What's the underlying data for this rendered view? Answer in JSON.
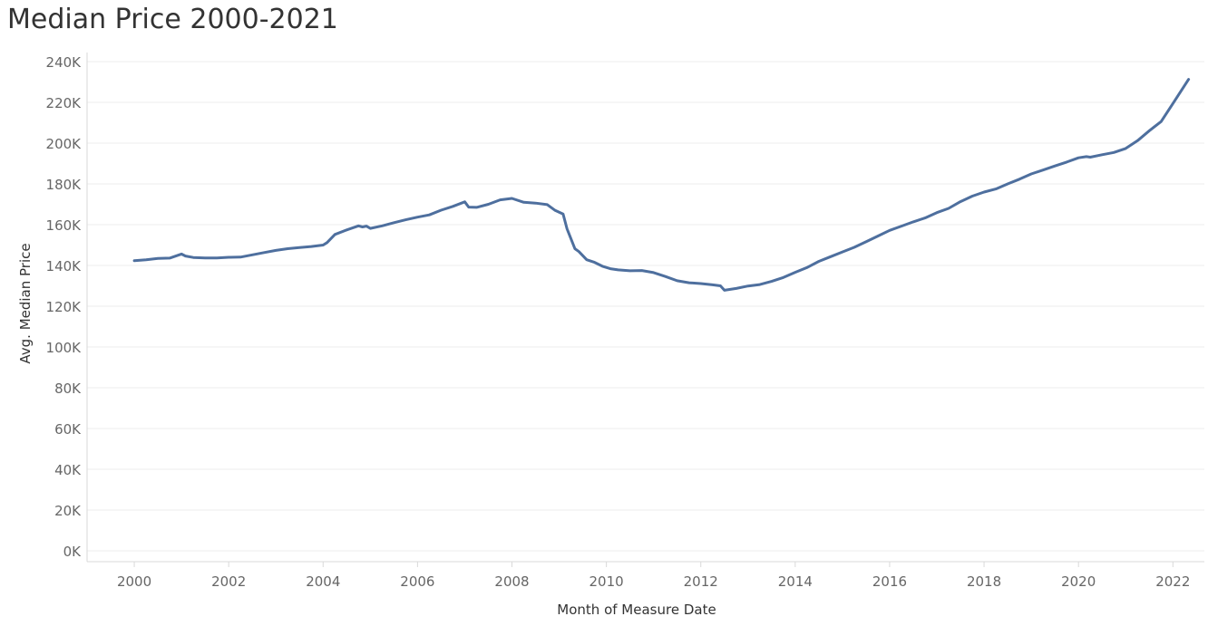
{
  "title": "Median Price 2000-2021",
  "colors": {
    "line": "#4e6f9e",
    "grid": "#eeeeee",
    "axis": "#d9d9d9",
    "tick_text": "#666666",
    "label_text": "#333333"
  },
  "chart_data": {
    "type": "line",
    "title": "Median Price 2000-2021",
    "xlabel": "Month of Measure Date",
    "ylabel": "Avg. Median Price",
    "xlim": [
      "1999-01",
      "2022-09"
    ],
    "ylim": [
      0,
      240000
    ],
    "x_ticks": [
      "2000",
      "2002",
      "2004",
      "2006",
      "2008",
      "2010",
      "2012",
      "2014",
      "2016",
      "2018",
      "2020",
      "2022"
    ],
    "y_ticks": [
      {
        "value": 0,
        "label": "0K"
      },
      {
        "value": 20000,
        "label": "20K"
      },
      {
        "value": 40000,
        "label": "40K"
      },
      {
        "value": 60000,
        "label": "60K"
      },
      {
        "value": 80000,
        "label": "80K"
      },
      {
        "value": 100000,
        "label": "100K"
      },
      {
        "value": 120000,
        "label": "120K"
      },
      {
        "value": 140000,
        "label": "140K"
      },
      {
        "value": 160000,
        "label": "160K"
      },
      {
        "value": 180000,
        "label": "180K"
      },
      {
        "value": 200000,
        "label": "200K"
      },
      {
        "value": 220000,
        "label": "220K"
      },
      {
        "value": 240000,
        "label": "240K"
      }
    ],
    "grid": true,
    "legend": "none",
    "series": [
      {
        "points": [
          [
            "2000-01",
            142300
          ],
          [
            "2000-04",
            142800
          ],
          [
            "2000-07",
            143400
          ],
          [
            "2000-10",
            143600
          ],
          [
            "2001-01",
            145600
          ],
          [
            "2001-02",
            144600
          ],
          [
            "2001-04",
            143900
          ],
          [
            "2001-07",
            143700
          ],
          [
            "2001-10",
            143700
          ],
          [
            "2002-01",
            144000
          ],
          [
            "2002-04",
            144100
          ],
          [
            "2002-07",
            145200
          ],
          [
            "2002-10",
            146300
          ],
          [
            "2003-01",
            147400
          ],
          [
            "2003-04",
            148200
          ],
          [
            "2003-07",
            148800
          ],
          [
            "2003-10",
            149300
          ],
          [
            "2004-01",
            150000
          ],
          [
            "2004-02",
            151200
          ],
          [
            "2004-04",
            155200
          ],
          [
            "2004-07",
            157400
          ],
          [
            "2004-10",
            159400
          ],
          [
            "2004-11",
            158900
          ],
          [
            "2004-12",
            159300
          ],
          [
            "2005-01",
            158200
          ],
          [
            "2005-04",
            159400
          ],
          [
            "2005-07",
            161000
          ],
          [
            "2005-10",
            162400
          ],
          [
            "2006-01",
            163700
          ],
          [
            "2006-04",
            164800
          ],
          [
            "2006-07",
            167100
          ],
          [
            "2006-10",
            169000
          ],
          [
            "2007-01",
            171200
          ],
          [
            "2007-02",
            168600
          ],
          [
            "2007-04",
            168500
          ],
          [
            "2007-07",
            170000
          ],
          [
            "2007-10",
            172200
          ],
          [
            "2008-01",
            172900
          ],
          [
            "2008-04",
            171000
          ],
          [
            "2008-07",
            170600
          ],
          [
            "2008-10",
            169800
          ],
          [
            "2008-12",
            167000
          ],
          [
            "2009-02",
            165200
          ],
          [
            "2009-03",
            158000
          ],
          [
            "2009-05",
            148200
          ],
          [
            "2009-06",
            146800
          ],
          [
            "2009-08",
            142800
          ],
          [
            "2009-10",
            141500
          ],
          [
            "2009-12",
            139600
          ],
          [
            "2010-02",
            138400
          ],
          [
            "2010-04",
            137800
          ],
          [
            "2010-07",
            137400
          ],
          [
            "2010-10",
            137500
          ],
          [
            "2011-01",
            136500
          ],
          [
            "2011-04",
            134600
          ],
          [
            "2011-07",
            132500
          ],
          [
            "2011-10",
            131500
          ],
          [
            "2012-01",
            131100
          ],
          [
            "2012-04",
            130500
          ],
          [
            "2012-06",
            130000
          ],
          [
            "2012-07",
            127800
          ],
          [
            "2012-10",
            128700
          ],
          [
            "2013-01",
            129900
          ],
          [
            "2013-04",
            130600
          ],
          [
            "2013-07",
            132200
          ],
          [
            "2013-10",
            134100
          ],
          [
            "2014-01",
            136600
          ],
          [
            "2014-04",
            139000
          ],
          [
            "2014-07",
            142000
          ],
          [
            "2014-10",
            144300
          ],
          [
            "2015-01",
            146600
          ],
          [
            "2015-04",
            148900
          ],
          [
            "2015-07",
            151600
          ],
          [
            "2015-10",
            154400
          ],
          [
            "2016-01",
            157200
          ],
          [
            "2016-04",
            159300
          ],
          [
            "2016-07",
            161400
          ],
          [
            "2016-10",
            163300
          ],
          [
            "2017-01",
            165900
          ],
          [
            "2017-04",
            168000
          ],
          [
            "2017-07",
            171300
          ],
          [
            "2017-10",
            174000
          ],
          [
            "2018-01",
            176000
          ],
          [
            "2018-04",
            177500
          ],
          [
            "2018-07",
            180000
          ],
          [
            "2018-10",
            182300
          ],
          [
            "2019-01",
            184900
          ],
          [
            "2019-04",
            186800
          ],
          [
            "2019-07",
            188800
          ],
          [
            "2019-10",
            190700
          ],
          [
            "2020-01",
            192800
          ],
          [
            "2020-03",
            193400
          ],
          [
            "2020-04",
            193100
          ],
          [
            "2020-07",
            194300
          ],
          [
            "2020-10",
            195400
          ],
          [
            "2021-01",
            197400
          ],
          [
            "2021-04",
            201200
          ],
          [
            "2021-07",
            206100
          ],
          [
            "2021-10",
            210600
          ],
          [
            "2022-01",
            219400
          ],
          [
            "2022-05",
            231300
          ]
        ]
      }
    ]
  }
}
